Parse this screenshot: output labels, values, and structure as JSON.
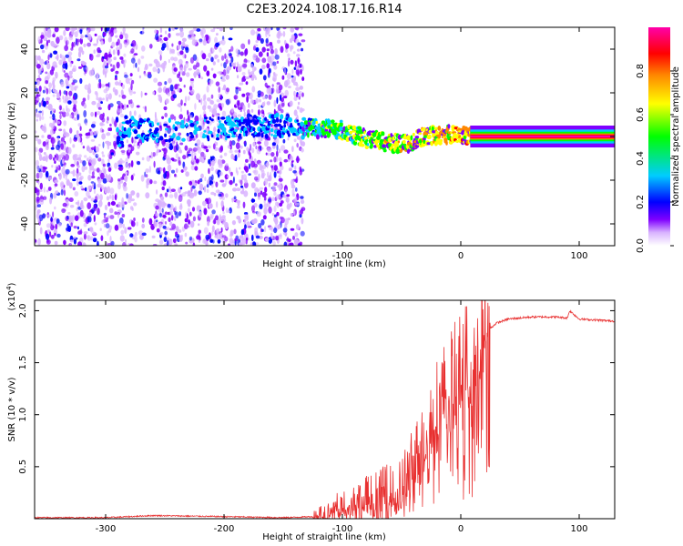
{
  "title": "C2E3.2024.108.17.16.R14",
  "chart_data": [
    {
      "type": "heatmap",
      "name": "spectrogram",
      "xlabel": "Height of straight line (km)",
      "ylabel": "Frequency (Hz)",
      "xlim": [
        -360,
        130
      ],
      "ylim": [
        -50,
        50
      ],
      "xticks": [
        -300,
        -200,
        -100,
        0,
        100
      ],
      "yticks": [
        -40,
        -20,
        0,
        20,
        40
      ],
      "colorbar": {
        "label": "Normalized spectral amplitude",
        "range": [
          0.0,
          1.0
        ],
        "ticks": [
          "0.0",
          "0.2",
          "0.4",
          "0.6",
          "0.8"
        ],
        "colormap": [
          "#ffffff",
          "#d9b3ff",
          "#7f00ff",
          "#0000ff",
          "#00ccff",
          "#00ff00",
          "#ffff00",
          "#ff8800",
          "#ff0000",
          "#ff00aa"
        ]
      },
      "regions": [
        {
          "x_range": [
            -360,
            -133
          ],
          "description_values": {
            "freq_span": [
              -50,
              50
            ],
            "mean_amplitude": 0.1
          }
        },
        {
          "x_range": [
            -133,
            10
          ],
          "carrier_freq": [
            7,
            0
          ],
          "mean_amplitude": 0.3
        },
        {
          "x_range": [
            10,
            130
          ],
          "carrier_freq": [
            0,
            0
          ],
          "mean_amplitude": 0.95
        }
      ],
      "carrier_trace": [
        {
          "x": -285,
          "f": 5
        },
        {
          "x": -270,
          "f": 3
        },
        {
          "x": -240,
          "f": 3
        },
        {
          "x": -200,
          "f": 4
        },
        {
          "x": -180,
          "f": 5
        },
        {
          "x": -150,
          "f": 5
        },
        {
          "x": -130,
          "f": 4
        },
        {
          "x": -100,
          "f": 3
        },
        {
          "x": -80,
          "f": -1
        },
        {
          "x": -60,
          "f": -3
        },
        {
          "x": -45,
          "f": -3
        },
        {
          "x": -30,
          "f": 0
        },
        {
          "x": -10,
          "f": 1
        },
        {
          "x": 0,
          "f": 1
        },
        {
          "x": 10,
          "f": 0
        },
        {
          "x": 130,
          "f": 0
        }
      ]
    },
    {
      "type": "line",
      "name": "snr",
      "xlabel": "Height of straight line (km)",
      "ylabel": "SNR (10 * v/v)",
      "yscale_label": "(x10",
      "yscale_exp": "4",
      "xlim": [
        -360,
        130
      ],
      "ylim": [
        0,
        2.1
      ],
      "xticks": [
        -300,
        -200,
        -100,
        0,
        100
      ],
      "yticks": [
        0.5,
        1.0,
        1.5,
        2.0
      ],
      "ytick_labels": [
        "0.5",
        "1.0",
        "1.5",
        "2.0"
      ],
      "color": "#e83030",
      "series": [
        {
          "name": "SNR",
          "x": [
            -360,
            -300,
            -260,
            -200,
            -150,
            -125,
            -110,
            -100,
            -80,
            -60,
            -50,
            -40,
            -30,
            -20,
            -10,
            0,
            10,
            20,
            30,
            40,
            60,
            80,
            90,
            92,
            100,
            130
          ],
          "y": [
            0.01,
            0.01,
            0.03,
            0.02,
            0.01,
            0.02,
            0.06,
            0.12,
            0.18,
            0.22,
            0.3,
            0.5,
            0.8,
            1.1,
            1.3,
            1.45,
            1.62,
            1.78,
            1.88,
            1.92,
            1.94,
            1.94,
            1.93,
            2.0,
            1.92,
            1.9
          ]
        }
      ]
    }
  ]
}
